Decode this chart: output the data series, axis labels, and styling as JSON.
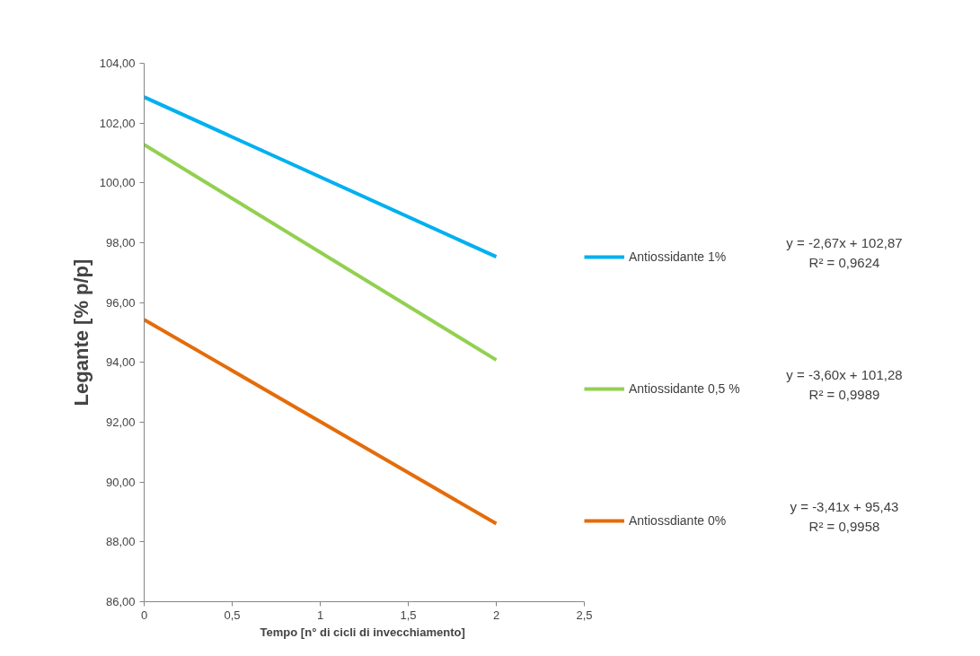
{
  "chart_data": {
    "type": "line",
    "xlabel": "Tempo  [n° di cicli di invecchiamento]",
    "ylabel": "Legante [% p/p]",
    "x": [
      0,
      2
    ],
    "series": [
      {
        "name": "Antiossidante 1%",
        "color": "#00b0f0",
        "values": [
          102.87,
          97.53
        ]
      },
      {
        "name": "Antiossidante 0,5 %",
        "color": "#92d050",
        "values": [
          101.28,
          94.08
        ]
      },
      {
        "name": "Antiossdiante 0%",
        "color": "#e46c0a",
        "values": [
          95.43,
          88.61
        ]
      }
    ],
    "xlim": [
      0,
      2.5
    ],
    "ylim": [
      86,
      104
    ],
    "xticks": [
      0,
      {
        "value": 0.5,
        "label": "0,5"
      },
      1,
      {
        "value": 1.5,
        "label": "1,5"
      },
      2,
      {
        "value": 2.5,
        "label": "2,5"
      }
    ],
    "yticks": [
      {
        "value": 86,
        "label": "86,00"
      },
      {
        "value": 88,
        "label": "88,00"
      },
      {
        "value": 90,
        "label": "90,00"
      },
      {
        "value": 92,
        "label": "92,00"
      },
      {
        "value": 94,
        "label": "94,00"
      },
      {
        "value": 96,
        "label": "96,00"
      },
      {
        "value": 98,
        "label": "98,00"
      },
      {
        "value": 100,
        "label": "100,00"
      },
      {
        "value": 102,
        "label": "102,00"
      },
      {
        "value": 104,
        "label": "104,00"
      }
    ],
    "annotations": [
      "y = -2,67x + 102,87",
      "R² = 0,9624",
      "y = -3,60x + 101,28",
      "R² = 0,9989",
      "y = -3,41x + 95,43",
      "R² = 0,9958"
    ],
    "legend": "right",
    "grid": false,
    "marker": "none",
    "line_style": "solid"
  }
}
